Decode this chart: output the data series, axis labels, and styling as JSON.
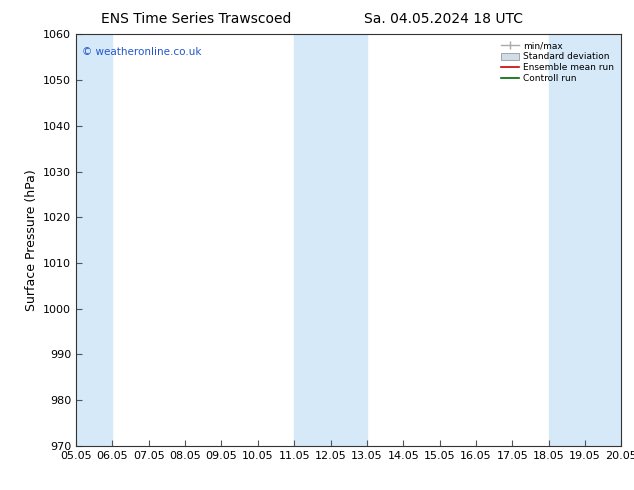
{
  "title_left": "ENS Time Series Trawscoed",
  "title_right": "Sa. 04.05.2024 18 UTC",
  "ylabel": "Surface Pressure (hPa)",
  "ylim": [
    970,
    1060
  ],
  "yticks": [
    970,
    980,
    990,
    1000,
    1010,
    1020,
    1030,
    1040,
    1050,
    1060
  ],
  "xlim": [
    0,
    15
  ],
  "xtick_labels": [
    "05.05",
    "06.05",
    "07.05",
    "08.05",
    "09.05",
    "10.05",
    "11.05",
    "12.05",
    "13.05",
    "14.05",
    "15.05",
    "16.05",
    "17.05",
    "18.05",
    "19.05",
    "20.05"
  ],
  "xtick_positions": [
    0,
    1,
    2,
    3,
    4,
    5,
    6,
    7,
    8,
    9,
    10,
    11,
    12,
    13,
    14,
    15
  ],
  "shaded_bands": [
    {
      "xmin": 0.0,
      "xmax": 1.0
    },
    {
      "xmin": 6.0,
      "xmax": 8.0
    },
    {
      "xmin": 13.0,
      "xmax": 15.0
    }
  ],
  "shade_color": "#d6e9f8",
  "bg_color": "#ffffff",
  "plot_bg_color": "#ffffff",
  "watermark_text": "© weatheronline.co.uk",
  "watermark_color": "#2255cc",
  "legend_labels": [
    "min/max",
    "Standard deviation",
    "Ensemble mean run",
    "Controll run"
  ],
  "legend_line_color": "#aaaaaa",
  "legend_patch_color": "#d0dce8",
  "legend_red": "#cc0000",
  "legend_green": "#006600",
  "title_fontsize": 10,
  "tick_fontsize": 8,
  "ylabel_fontsize": 9
}
